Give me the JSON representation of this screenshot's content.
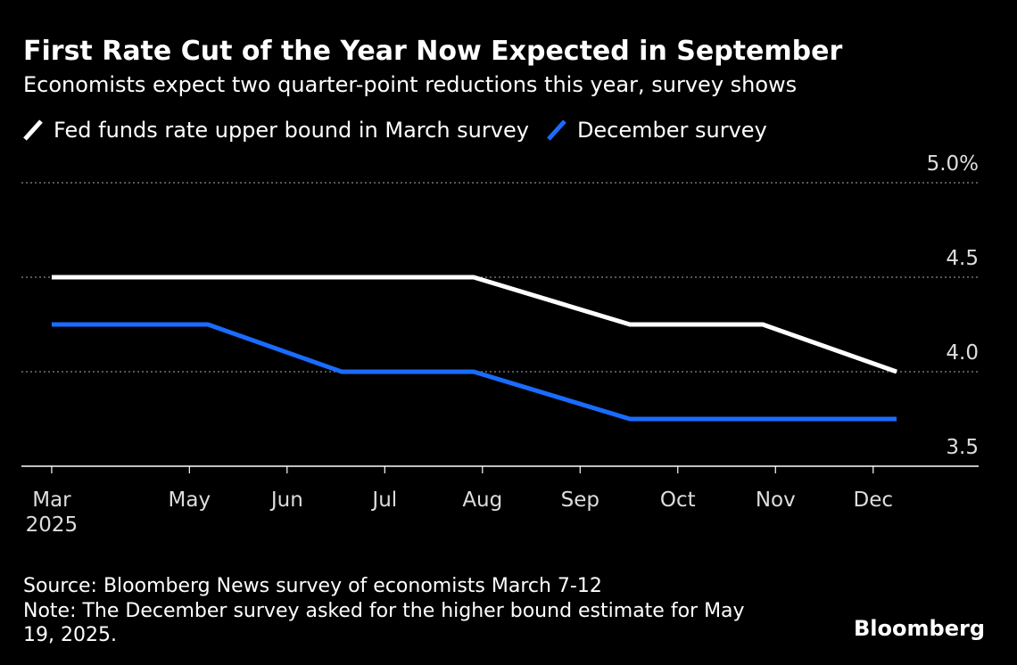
{
  "chart_data": {
    "type": "line",
    "title": "First Rate Cut of the Year Now Expected in September",
    "subtitle": "Economists expect two quarter-point reductions this year, survey shows",
    "x": [
      3.59,
      5.19,
      6.56,
      7.91,
      9.51,
      10.87,
      12.24
    ],
    "series": [
      {
        "name": "Fed funds rate upper bound in March survey",
        "color": "#ffffff",
        "values": [
          4.5,
          4.5,
          4.5,
          4.5,
          4.25,
          4.25,
          4.0
        ]
      },
      {
        "name": "December survey",
        "color": "#1a6cff",
        "values": [
          4.25,
          4.25,
          4.0,
          4.0,
          3.75,
          3.75,
          3.75
        ]
      }
    ],
    "xlim": [
      3.28,
      13.08
    ],
    "xticks": [
      {
        "value": 3.59,
        "label": "Mar\n2025"
      },
      {
        "value": 5,
        "label": "May"
      },
      {
        "value": 6,
        "label": "Jun"
      },
      {
        "value": 7,
        "label": "Jul"
      },
      {
        "value": 8,
        "label": "Aug"
      },
      {
        "value": 9,
        "label": "Sep"
      },
      {
        "value": 10,
        "label": "Oct"
      },
      {
        "value": 11,
        "label": "Nov"
      },
      {
        "value": 12,
        "label": "Dec"
      }
    ],
    "ylim": [
      3.5,
      5.0
    ],
    "yticks": [
      3.5,
      {
        "value": 4,
        "label": "4.0"
      },
      4.5,
      {
        "value": 5,
        "label": "5.0%"
      }
    ],
    "grid": true,
    "source": "Source: Bloomberg News survey of economists March 7-12",
    "note": "Note: The December survey asked for the higher bound estimate for May 19, 2025.",
    "brand": "Bloomberg"
  }
}
